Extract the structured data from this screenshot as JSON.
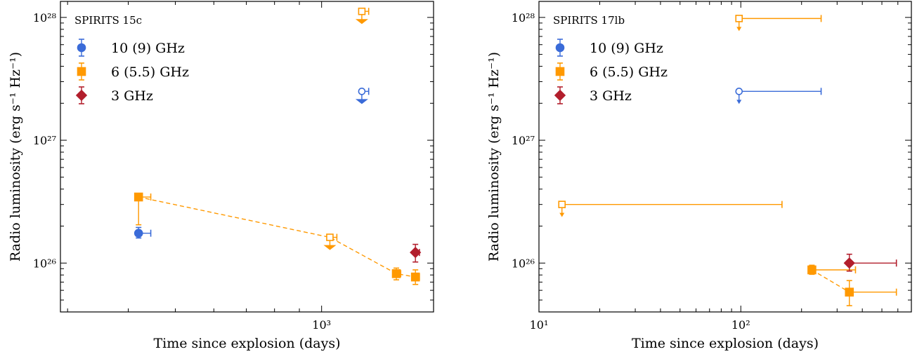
{
  "chart_data": [
    {
      "type": "scatter",
      "title": "SPIRITS 15c",
      "xlabel": "Time since explosion (days)",
      "ylabel": "Radio luminosity (erg s⁻¹ Hz⁻¹)",
      "xscale": "log",
      "yscale": "log",
      "xlim": [
        290,
        1700
      ],
      "ylim": [
        4e+25,
        1.35e+28
      ],
      "legend_loc": "upper-left",
      "x_tick_labels": [
        {
          "value": 1000,
          "label": "10³"
        }
      ],
      "y_tick_labels": [
        {
          "value": 1e+26,
          "label": "10²⁶"
        },
        {
          "value": 1e+27,
          "label": "10²⁷"
        },
        {
          "value": 1e+28,
          "label": "10²⁸"
        }
      ],
      "series": [
        {
          "name": "10 (9) GHz",
          "color": "#3a6bd8",
          "marker": "circle",
          "points": [
            {
              "x": 420,
              "y": 1.75e+26,
              "y_err_low": 1.6e+26,
              "y_err_high": 1.95e+26,
              "x_hi": 445,
              "upper_limit": false
            },
            {
              "x": 1210,
              "y": 2.5e+27,
              "x_hi": 1250,
              "upper_limit": true
            }
          ],
          "connect": false
        },
        {
          "name": "6 (5.5) GHz",
          "color": "#ff9900",
          "marker": "square",
          "points": [
            {
              "x": 420,
              "y": 3.45e+26,
              "y_err_low": 2.05e+26,
              "y_err_high": 3.6e+26,
              "x_hi": 445,
              "upper_limit": false
            },
            {
              "x": 1040,
              "y": 1.62e+26,
              "x_hi": 1075,
              "upper_limit": true
            },
            {
              "x": 1210,
              "y": 1.12e+28,
              "x_hi": 1250,
              "upper_limit": true
            },
            {
              "x": 1425,
              "y": 8.2e+25,
              "y_err_low": 7.3e+25,
              "y_err_high": 9.1e+25,
              "x_hi": 1455,
              "upper_limit": false
            },
            {
              "x": 1560,
              "y": 7.7e+25,
              "y_err_low": 6.7e+25,
              "y_err_high": 8.8e+25,
              "x_hi": 1590,
              "upper_limit": false
            }
          ],
          "connect": true
        },
        {
          "name": "3 GHz",
          "color": "#b21e2c",
          "marker": "diamond",
          "points": [
            {
              "x": 1560,
              "y": 1.22e+26,
              "y_err_low": 1.02e+26,
              "y_err_high": 1.42e+26,
              "x_hi": 1590,
              "upper_limit": false
            }
          ],
          "connect": false
        }
      ]
    },
    {
      "type": "scatter",
      "title": "SPIRITS 17lb",
      "xlabel": "Time since explosion (days)",
      "ylabel": "Radio luminosity (erg s⁻¹ Hz⁻¹)",
      "xscale": "log",
      "yscale": "log",
      "xlim": [
        10,
        700
      ],
      "ylim": [
        4e+25,
        1.35e+28
      ],
      "legend_loc": "upper-left",
      "x_tick_labels": [
        {
          "value": 10,
          "label": "10¹"
        },
        {
          "value": 100,
          "label": "10²"
        }
      ],
      "y_tick_labels": [
        {
          "value": 1e+26,
          "label": "10²⁶"
        },
        {
          "value": 1e+27,
          "label": "10²⁷"
        },
        {
          "value": 1e+28,
          "label": "10²⁸"
        }
      ],
      "series": [
        {
          "name": "10 (9) GHz",
          "color": "#3a6bd8",
          "marker": "circle",
          "points": [
            {
              "x": 98,
              "y": 2.5e+27,
              "x_hi": 250,
              "upper_limit": true
            }
          ],
          "connect": false
        },
        {
          "name": "6 (5.5) GHz",
          "color": "#ff9900",
          "marker": "square",
          "points": [
            {
              "x": 13,
              "y": 3e+26,
              "x_hi": 160,
              "upper_limit": true
            },
            {
              "x": 98,
              "y": 9.8e+27,
              "x_hi": 250,
              "upper_limit": true
            },
            {
              "x": 225,
              "y": 8.8e+25,
              "y_err_low": 8.1e+25,
              "y_err_high": 9.6e+25,
              "x_hi": 370,
              "upper_limit": false
            },
            {
              "x": 345,
              "y": 5.8e+25,
              "y_err_low": 4.5e+25,
              "y_err_high": 7.2e+25,
              "x_hi": 590,
              "upper_limit": false
            }
          ],
          "connect": true,
          "connect_from_index": 2
        },
        {
          "name": "3 GHz",
          "color": "#b21e2c",
          "marker": "diamond",
          "points": [
            {
              "x": 345,
              "y": 1e+26,
              "y_err_low": 8.6e+25,
              "y_err_high": 1.18e+26,
              "x_hi": 590,
              "upper_limit": false
            }
          ],
          "connect": false
        }
      ]
    }
  ]
}
